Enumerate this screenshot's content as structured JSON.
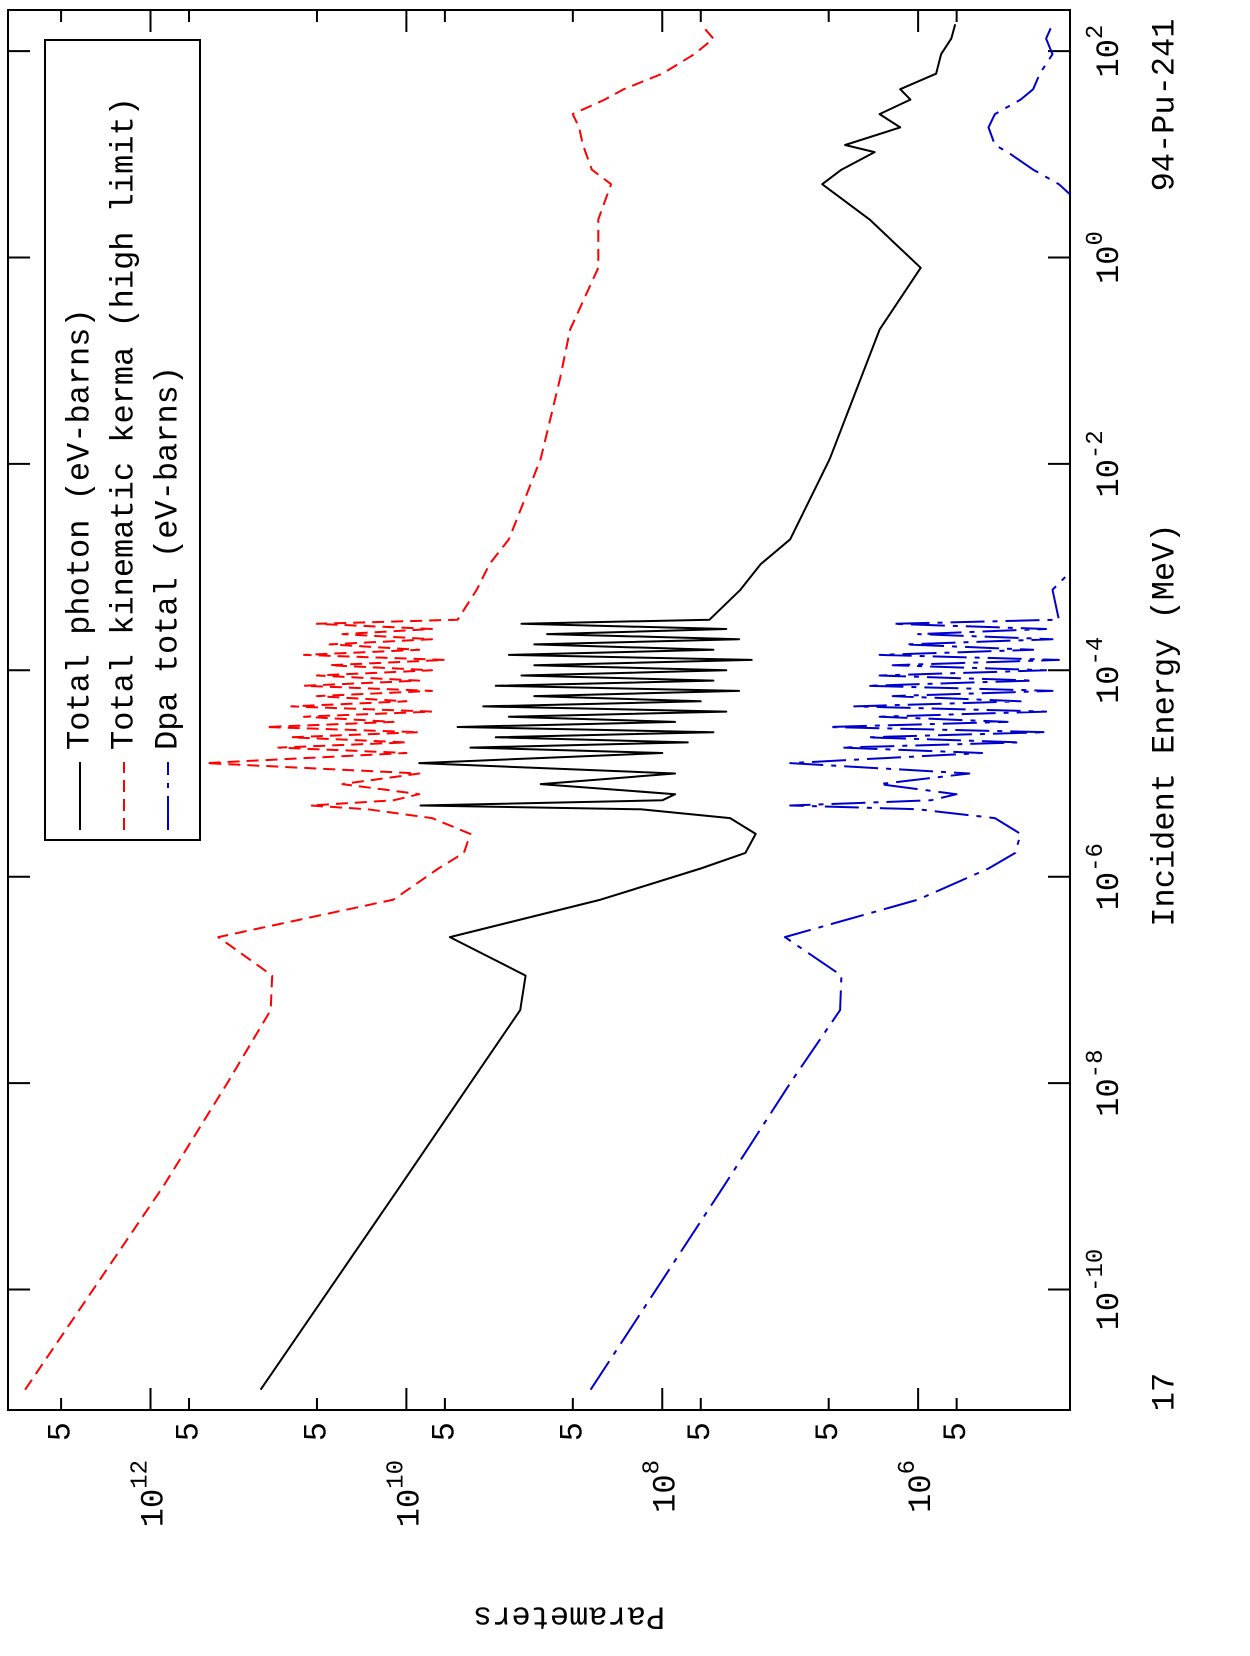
{
  "chart_data": {
    "type": "line",
    "xlabel": "Incident Energy (MeV)",
    "ylabel": "Parameters",
    "annotations": [
      "94-Pu-241",
      "17"
    ],
    "xscale": "log",
    "yscale": "log",
    "xlim": [
      6.8e-12,
      250
    ],
    "ylim": [
      65000,
      13000000000000.0
    ],
    "xticks": [
      {
        "value": 1e-10,
        "label": "10^-10"
      },
      {
        "value": 1e-08,
        "label": "10^-8"
      },
      {
        "value": 1e-06,
        "label": "10^-6"
      },
      {
        "value": 0.0001,
        "label": "10^-4"
      },
      {
        "value": 0.01,
        "label": "10^-2"
      },
      {
        "value": 1,
        "label": "10^0"
      },
      {
        "value": 100,
        "label": "10^2"
      }
    ],
    "yticks": [
      {
        "value": 500000,
        "label": "5"
      },
      {
        "value": 1000000,
        "label": "10^6"
      },
      {
        "value": 5000000,
        "label": "5"
      },
      {
        "value": 50000000,
        "label": "5"
      },
      {
        "value": 100000000,
        "label": "10^8"
      },
      {
        "value": 500000000,
        "label": "5"
      },
      {
        "value": 5000000000,
        "label": "5"
      },
      {
        "value": 10000000000,
        "label": "10^10"
      },
      {
        "value": 50000000000,
        "label": "5"
      },
      {
        "value": 500000000000,
        "label": "5"
      },
      {
        "value": 1000000000000,
        "label": "10^12"
      },
      {
        "value": 5000000000000,
        "label": "5"
      }
    ],
    "grid": false,
    "legend": "upper right",
    "x": [
      1.07e-11,
      1e-09,
      1e-08,
      5.1e-08,
      1.1e-07,
      2.6e-07,
      6e-07,
      1.2e-06,
      1.7e-06,
      2.6e-06,
      3.7e-06,
      4.5e-06,
      4.9e-06,
      5.5e-06,
      6.3e-06,
      7.9e-06,
      1e-05,
      1.26e-05,
      1.58e-05,
      1.78e-05,
      2e-05,
      2.24e-05,
      2.51e-05,
      2.82e-05,
      3.16e-05,
      3.55e-05,
      3.98e-05,
      4.47e-05,
      5.01e-05,
      5.62e-05,
      6.31e-05,
      7.08e-05,
      7.94e-05,
      8.91e-05,
      0.0001,
      0.000112,
      0.000126,
      0.000141,
      0.000158,
      0.000178,
      0.0002,
      0.000224,
      0.000251,
      0.000282,
      0.000309,
      0.000603,
      0.00107,
      0.00186,
      0.0112,
      0.0661,
      0.2,
      0.794,
      2.34,
      5.13,
      7.08,
      10.5,
      12.3,
      18.2,
      24.5,
      33.9,
      42.7,
      60.3,
      93.3,
      132,
      182
    ],
    "series": [
      {
        "name": "Total photon (eV-barns)",
        "color": "#000000",
        "linestyle": "solid",
        "values": [
          138000000000.0,
          11200000000.0,
          3160000000.0,
          1290000000.0,
          1170000000.0,
          4570000000.0,
          302000000.0,
          50100000.0,
          22400000.0,
          18600000.0,
          29500000.0,
          148000000.0,
          7760000000.0,
          100000000.0,
          79400000.0,
          891000000.0,
          79400000.0,
          7940000000.0,
          100000000.0,
          3160000000.0,
          63100000.0,
          2000000000.0,
          39800000.0,
          3980000000.0,
          79400000.0,
          1580000000.0,
          31600000.0,
          2510000000.0,
          50100000.0,
          1000000000.0,
          25100000.0,
          2000000000.0,
          39800000.0,
          1260000000.0,
          31600000.0,
          1000000000.0,
          20000000.0,
          1580000000.0,
          39800000.0,
          1000000000.0,
          25100000.0,
          794000000.0,
          31600000.0,
          1260000000.0,
          42700000.0,
          24500000.0,
          17000000.0,
          10000000.0,
          4900000.0,
          2820000.0,
          2000000.0,
          955000.0,
          2400000.0,
          5620000.0,
          3980000.0,
          2190000.0,
          3720000.0,
          1380000.0,
          2000000.0,
          1150000.0,
          1380000.0,
          724000.0,
          661000.0,
          550000.0,
          513000.0
        ]
      },
      {
        "name": "Total kinematic kerma (high limit)",
        "color": "#ff0000",
        "linestyle": "dashed",
        "values": [
          9550000000000.0,
          794000000000.0,
          251000000000.0,
          115000000000.0,
          112000000000.0,
          295000000000.0,
          12600000000.0,
          5620000000.0,
          3550000000.0,
          3160000000.0,
          6310000000.0,
          20000000000.0,
          56200000000.0,
          12600000000.0,
          7940000000.0,
          31600000000.0,
          7940000000.0,
          372000000000.0,
          10000000000.0,
          100000000000.0,
          10000000000.0,
          79400000000.0,
          7940000000.0,
          126000000000.0,
          12600000000.0,
          63100000000.0,
          6310000000.0,
          79400000000.0,
          10000000000.0,
          50100000000.0,
          6310000000.0,
          63100000000.0,
          7940000000.0,
          50100000000.0,
          6310000000.0,
          39800000000.0,
          5010000000.0,
          63100000000.0,
          7940000000.0,
          39800000000.0,
          6310000000.0,
          31600000000.0,
          6310000000.0,
          50100000000.0,
          3980000000.0,
          2820000000.0,
          2240000000.0,
          1580000000.0,
          891000000.0,
          631000000.0,
          525000000.0,
          316000000.0,
          316000000.0,
          251000000.0,
          355000000.0,
          398000000.0,
          417000000.0,
          447000000.0,
          501000000.0,
          282000000.0,
          200000000.0,
          100000000.0,
          56200000.0,
          39800000.0,
          50100000.0
        ]
      },
      {
        "name": "Dpa total (eV-barns)",
        "color": "#0000cc",
        "linestyle": "dashdot",
        "values": [
          363000000.0,
          33100000.0,
          10000000.0,
          4070000.0,
          3980000.0,
          11000000.0,
          1000000.0,
          282000.0,
          174000.0,
          158000.0,
          251000.0,
          1000000.0,
          10000000.0,
          794000.0,
          501000.0,
          2000000.0,
          398000.0,
          10000000.0,
          316000.0,
          3980000.0,
          158000.0,
          2510000.0,
          100000.0,
          5010000.0,
          200000.0,
          2000000.0,
          100000.0,
          3160000.0,
          158000.0,
          1580000.0,
          89100.0,
          2510000.0,
          126000.0,
          2000000.0,
          100000.0,
          1580000.0,
          79400.0,
          2000000.0,
          126000.0,
          1260000.0,
          89100.0,
          1000000.0,
          100000.0,
          1580000.0,
          79400.0,
          89100.0,
          56200.0,
          39800.0,
          31600.0,
          31600.0,
          31600.0,
          31600.0,
          39800.0,
          79400.0,
          126000.0,
          200000.0,
          251000.0,
          282000.0,
          251000.0,
          158000.0,
          126000.0,
          112000.0,
          89100.0,
          100000.0,
          89100.0
        ]
      }
    ]
  }
}
